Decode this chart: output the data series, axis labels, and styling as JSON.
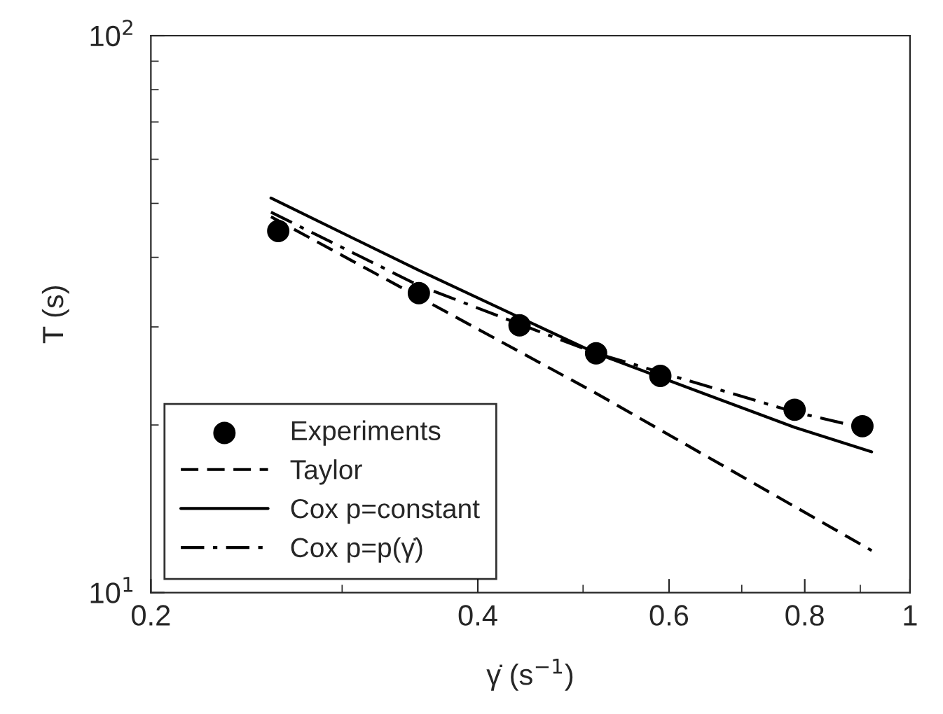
{
  "chart_data": {
    "type": "line",
    "xlabel": "γ̇ (s$^{−1}$)",
    "ylabel": "T (s)",
    "log": "xy",
    "xlim": [
      0.2,
      1
    ],
    "ylim": [
      10,
      100
    ],
    "xticks": [
      0.2,
      0.4,
      0.6,
      0.8,
      1
    ],
    "yticks": [
      {
        "value": 10,
        "label": "10$^{1}$"
      },
      {
        "value": 100,
        "label": "10$^{2}$"
      }
    ],
    "grid": false,
    "legend": "bottom left",
    "series": [
      {
        "name": "Experiments",
        "type": "scatter",
        "marker": "circle",
        "color": "#000000",
        "x": [
          0.262,
          0.353,
          0.437,
          0.514,
          0.589,
          0.783,
          0.904
        ],
        "values": [
          44.6,
          34.5,
          30.2,
          26.9,
          24.5,
          21.3,
          19.9
        ]
      },
      {
        "name": "Taylor",
        "line_style": "dashed",
        "marker": "none",
        "color": "#000000",
        "x": [
          0.258,
          0.514,
          0.922
        ],
        "values": [
          47.3,
          22.8,
          11.9
        ]
      },
      {
        "name": "Cox p=constant",
        "line_style": "solid",
        "marker": "none",
        "color": "#000000",
        "x": [
          0.258,
          0.353,
          0.514,
          0.783,
          0.922
        ],
        "values": [
          51.1,
          37.9,
          26.9,
          19.8,
          17.9
        ]
      },
      {
        "name": "Cox p=p(γ̇)",
        "line_style": "dashdot",
        "marker": "none",
        "color": "#000000",
        "x": [
          0.258,
          0.353,
          0.514,
          0.783,
          0.922
        ],
        "values": [
          48.2,
          35.6,
          26.9,
          21.1,
          19.6
        ]
      }
    ]
  }
}
